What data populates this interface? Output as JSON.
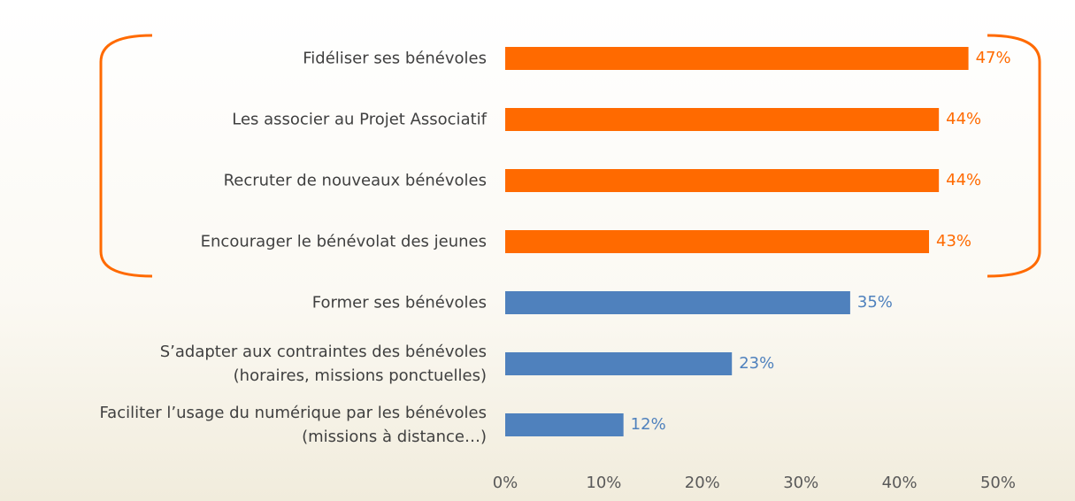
{
  "chart_data": {
    "type": "bar",
    "orientation": "horizontal",
    "categories": [
      "Fidéliser ses bénévoles",
      "Les associer au Projet Associatif",
      "Recruter de nouveaux bénévoles",
      "Encourager le bénévolat des jeunes",
      "Former ses bénévoles",
      "S’adapter aux contraintes des bénévoles\n(horaires, missions ponctuelles)",
      "Faciliter l’usage du numérique par les bénévoles\n(missions à distance…)"
    ],
    "values": [
      47,
      44,
      44,
      43,
      35,
      23,
      12
    ],
    "value_labels": [
      "47%",
      "44%",
      "44%",
      "43%",
      "35%",
      "23%",
      "12%"
    ],
    "colors": [
      "#ff6a00",
      "#ff6a00",
      "#ff6a00",
      "#ff6a00",
      "#4f81bd",
      "#4f81bd",
      "#4f81bd"
    ],
    "xlim": [
      0,
      50
    ],
    "xticks": [
      {
        "value": 0,
        "label": "0%"
      },
      {
        "value": 10,
        "label": "10%"
      },
      {
        "value": 20,
        "label": "20%"
      },
      {
        "value": 30,
        "label": "30%"
      },
      {
        "value": 40,
        "label": "40%"
      },
      {
        "value": 50,
        "label": "50%"
      }
    ],
    "grid": false
  }
}
